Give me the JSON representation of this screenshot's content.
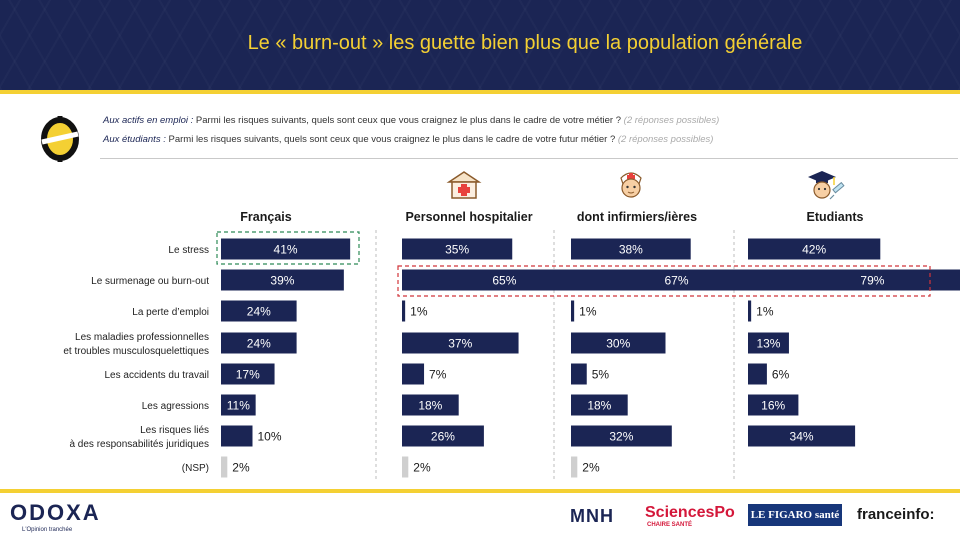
{
  "title": "Le « burn-out » les guette bien plus que la population générale",
  "question": {
    "q1_lead": "Aux actifs en emploi :",
    "q1_text": " Parmi les risques suivants, quels sont ceux que vous craignez le plus dans le cadre de votre métier ?",
    "q1_note": " (2 réponses possibles)",
    "q2_lead": "Aux étudiants :",
    "q2_text": " Parmi les risques suivants, quels sont ceux que vous craignez le plus dans le cadre de votre futur métier ?",
    "q2_note": " (2 réponses possibles)"
  },
  "chart_data": {
    "type": "bar",
    "orientation": "horizontal",
    "categories": [
      "Le stress",
      "Le surmenage ou burn-out",
      "La perte d’emploi",
      "Les maladies professionnelles\net troubles musculosquelettiques",
      "Les accidents du travail",
      "Les agressions",
      "Les risques liés\nà des responsabilités juridiques",
      "(NSP)"
    ],
    "series": [
      {
        "name": "Français",
        "values": [
          41,
          39,
          24,
          24,
          17,
          11,
          10,
          2
        ]
      },
      {
        "name": "Personnel hospitalier",
        "values": [
          35,
          65,
          1,
          37,
          7,
          18,
          26,
          2
        ]
      },
      {
        "name": "dont infirmiers/ières",
        "values": [
          38,
          67,
          1,
          30,
          5,
          18,
          32,
          2
        ]
      },
      {
        "name": "Etudiants",
        "values": [
          42,
          79,
          1,
          13,
          6,
          16,
          34,
          null
        ]
      }
    ],
    "value_suffix": "%",
    "highlights": [
      {
        "series": "Français",
        "category": "Le stress",
        "style": "green-dashed"
      },
      {
        "category": "Le surmenage ou burn-out",
        "series": [
          "Personnel hospitalier",
          "dont infirmiers/ières",
          "Etudiants"
        ],
        "style": "red-dashed"
      }
    ],
    "bar_color": "#1b2554",
    "nsp_color": "#cfcfcf"
  },
  "footer": {
    "brand": "ODOXA",
    "tagline": "L'Opinion tranchée",
    "partners": {
      "mnh": "MNH",
      "sciencespo": "SciencesPo",
      "sciencespo_sub": "CHAIRE SANTÉ",
      "figaro": "LE FIGARO santé",
      "franceinfo": "franceinfo:"
    }
  },
  "colors": {
    "navy": "#1b2554",
    "yellow": "#f4d033",
    "green": "#2e8b57",
    "red": "#d1353a"
  },
  "icons": [
    "odoxa-logo-icon",
    "hospital-icon",
    "nurse-icon",
    "graduate-icon"
  ]
}
